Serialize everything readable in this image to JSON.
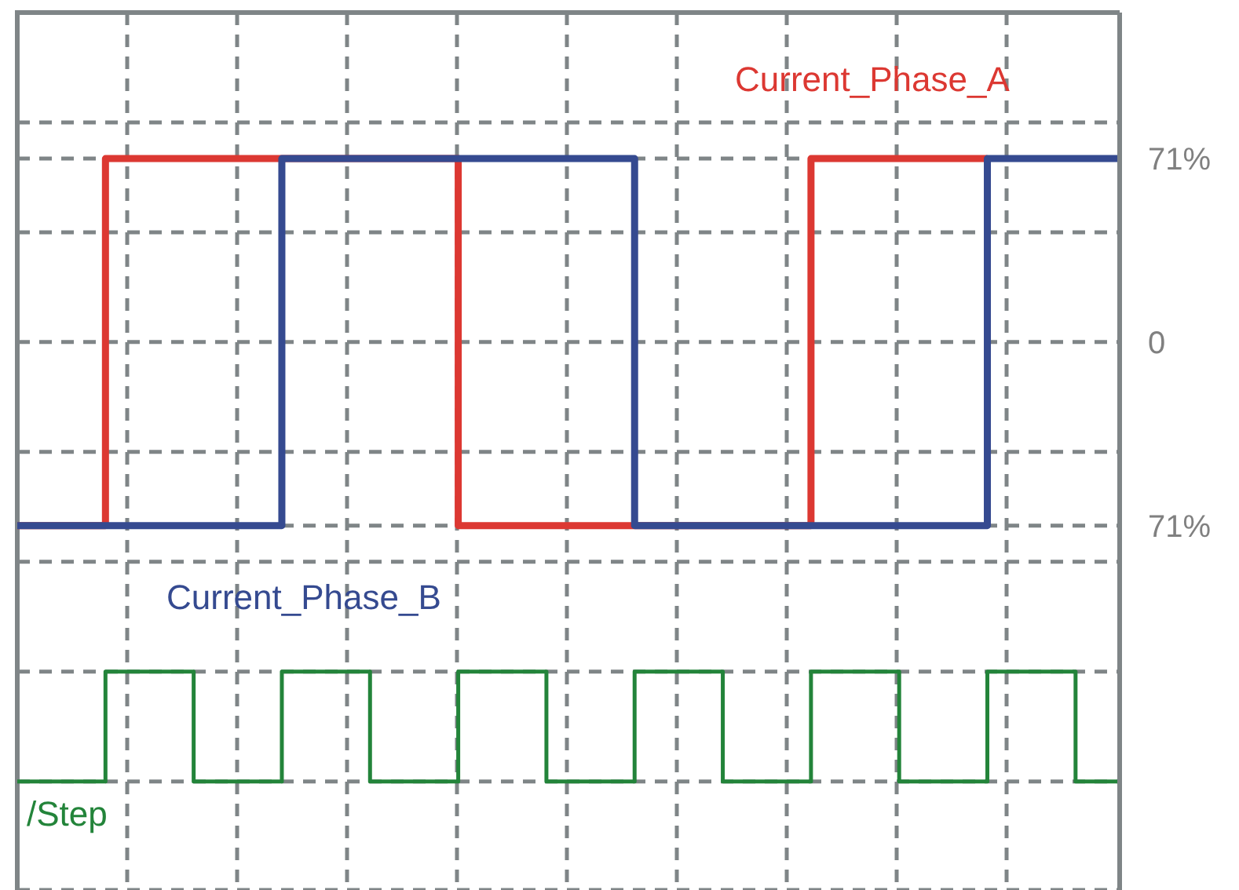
{
  "chart_data": {
    "type": "step",
    "categories": [
      null,
      null,
      null,
      null,
      null,
      null,
      null,
      null,
      null,
      null,
      null,
      null,
      null,
      null,
      null,
      null,
      null,
      null,
      null,
      null,
      null,
      null,
      null,
      null,
      null,
      null
    ],
    "series": [
      {
        "name": "Current_Phase_A",
        "color": "#dc3832",
        "values": [
          -71,
          -71,
          71,
          71,
          71,
          71,
          71,
          71,
          71,
          71,
          -71,
          -71,
          -71,
          -71,
          -71,
          -71,
          -71,
          -71,
          71,
          71,
          71,
          71,
          71,
          null,
          null,
          null
        ]
      },
      {
        "name": "Current_Phase_B",
        "color": "#354a90",
        "values": [
          -71,
          -71,
          -71,
          -71,
          -71,
          -71,
          71,
          71,
          71,
          71,
          71,
          71,
          71,
          71,
          -71,
          -71,
          -71,
          -71,
          -71,
          -71,
          -71,
          -71,
          71,
          71,
          71,
          71
        ]
      },
      {
        "name": "/Step",
        "color": "#23843a",
        "values": [
          -170,
          -170,
          -127.5,
          -127.5,
          -170,
          -170,
          -127.5,
          -127.5,
          -170,
          -170,
          -127.5,
          -127.5,
          -170,
          -170,
          -127.5,
          -127.5,
          -170,
          -170,
          -127.5,
          -127.5,
          -170,
          -170,
          -127.5,
          -127.5,
          -170,
          -170
        ]
      }
    ],
    "ylim": [
      -212,
      127.5
    ],
    "yticks": [
      {
        "value": 85,
        "label": null
      },
      {
        "value": 71,
        "label": "71%"
      },
      {
        "value": 42.5,
        "label": null
      },
      {
        "value": 0,
        "label": "0"
      },
      {
        "value": -42.5,
        "label": null
      },
      {
        "value": -71,
        "label": "71%"
      },
      {
        "value": -85,
        "label": null
      },
      {
        "value": -127.5,
        "label": null
      },
      {
        "value": -170,
        "label": null
      }
    ],
    "grid": true,
    "tick_labels": "y",
    "marker": "none",
    "line_style": "solid"
  }
}
